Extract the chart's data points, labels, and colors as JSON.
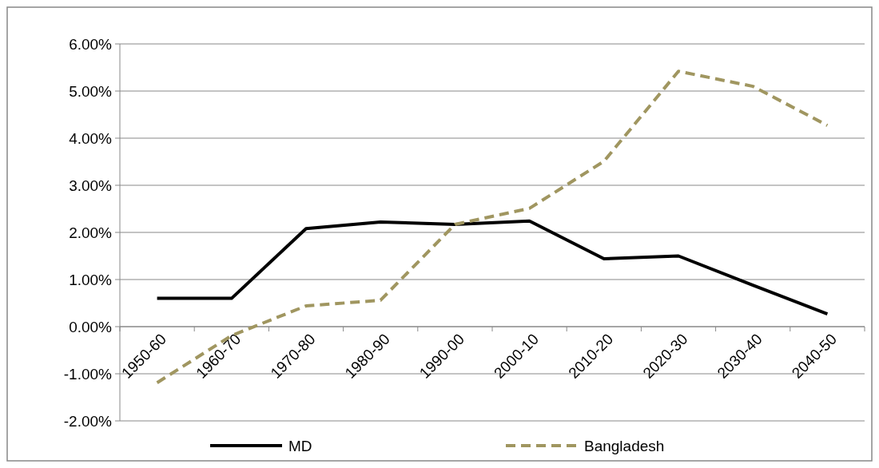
{
  "chart_data": {
    "type": "line",
    "categories": [
      "1950-60",
      "1960-70",
      "1970-80",
      "1980-90",
      "1990-00",
      "2000-10",
      "2010-20",
      "2020-30",
      "2030-40",
      "2040-50"
    ],
    "series": [
      {
        "name": "MD",
        "color": "#000000",
        "line_style": "solid",
        "values": [
          0.6,
          0.6,
          2.08,
          2.22,
          2.17,
          2.24,
          1.44,
          1.5,
          0.88,
          0.27
        ]
      },
      {
        "name": "Bangladesh",
        "color": "#a09660",
        "line_style": "dashed",
        "values": [
          -1.19,
          -0.19,
          0.44,
          0.56,
          2.17,
          2.51,
          3.51,
          5.42,
          5.1,
          4.27
        ]
      }
    ],
    "ylim": [
      -2,
      6
    ],
    "yticks": [
      {
        "value": -2,
        "label": "-2.00%"
      },
      {
        "value": -1,
        "label": "-1.00%"
      },
      {
        "value": 0,
        "label": "0.00%"
      },
      {
        "value": 1,
        "label": "1.00%"
      },
      {
        "value": 2,
        "label": "2.00%"
      },
      {
        "value": 3,
        "label": "3.00%"
      },
      {
        "value": 4,
        "label": "4.00%"
      },
      {
        "value": 5,
        "label": "5.00%"
      },
      {
        "value": 6,
        "label": "6.00%"
      }
    ],
    "grid": "y",
    "legend": "bottom",
    "marker": "none"
  }
}
